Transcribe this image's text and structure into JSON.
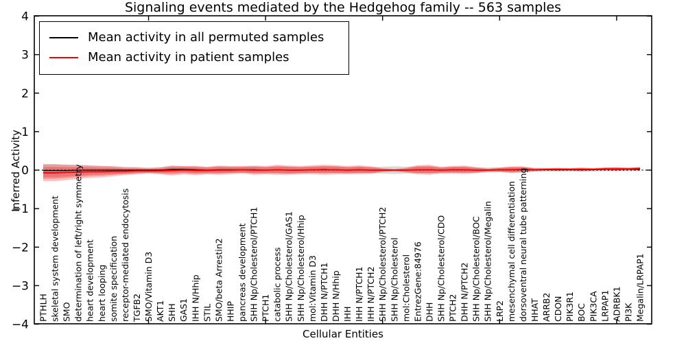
{
  "chart_data": {
    "type": "line",
    "title": "Signaling events mediated by the Hedgehog family -- 563 samples",
    "xlabel": "Cellular Entities",
    "ylabel": "Inferred Activity",
    "ylim": [
      -4,
      4
    ],
    "yticks": [
      4,
      3,
      2,
      1,
      0,
      -1,
      -2,
      -3,
      -4
    ],
    "ytick_labels": [
      "4",
      "3",
      "2",
      "1",
      "0",
      "−1",
      "−2",
      "−3",
      "−4"
    ],
    "x_major_tick_indices": [
      9,
      19,
      29,
      39,
      49
    ],
    "grid": false,
    "legend_position": "upper left",
    "zero_line_style": "dotted",
    "colors": {
      "permuted_line": "#000000",
      "patient_line": "#ff0000",
      "patient_band": "#ff0000",
      "permuted_band": "#999999",
      "frame": "#000000"
    },
    "categories": [
      "PTHLH",
      "skeletal system development",
      "SMO",
      "determination of left/right symmetry",
      "heart development",
      "heart looping",
      "somite specification",
      "receptor-mediated endocytosis",
      "TGFB2",
      "SMO/Vitamin D3",
      "AKT1",
      "SHH",
      "GAS1",
      "IHH N/Hhip",
      "STIL",
      "SMO/beta Arrestin2",
      "HHIP",
      "pancreas development",
      "SHH Np/Cholesterol/PTCH1",
      "PTCH1",
      "catabolic process",
      "SHH Np/Cholesterol/GAS1",
      "SHH Np/Cholesterol/Hhip",
      "mol:Vitamin D3",
      "DHH N/PTCH1",
      "DHH N/Hhip",
      "IHH",
      "IHH N/PTCH1",
      "IHH N/PTCH2",
      "SHH Np/Cholesterol/PTCH2",
      "SHH Np/Cholesterol",
      "mol:Cholesterol",
      "EntrezGene:84976",
      "DHH",
      "SHH Np/Cholesterol/CDO",
      "PTCH2",
      "DHH N/PTCH2",
      "SHH Np/Cholesterol/BOC",
      "SHH Np/Cholesterol/Megalin",
      "LRP2",
      "mesenchymal cell differentiation",
      "dorsoventral neural tube patterning",
      "HHAT",
      "ARRB2",
      "CDON",
      "PIK3R1",
      "BOC",
      "PIK3CA",
      "LRPAP1",
      "ADRBK1",
      "PI3K",
      "Megalin/LRPAP1"
    ],
    "series": [
      {
        "name": "Mean activity in all permuted samples",
        "color": "#000000",
        "values": [
          -0.01,
          -0.01,
          -0.01,
          0,
          0,
          0,
          0,
          0,
          0,
          0,
          0,
          0.02,
          0.02,
          0.01,
          0,
          0.01,
          0.01,
          0.01,
          0.01,
          0,
          0.01,
          0,
          0,
          0.01,
          0.02,
          0.01,
          0,
          0.01,
          0,
          0,
          0,
          0,
          0.01,
          0.01,
          0,
          0.01,
          0.01,
          0,
          0,
          0.01,
          0.01,
          0.01,
          0.01,
          0.01,
          0.01,
          0.01,
          0.01,
          0.01,
          0.02,
          0.02,
          0.02,
          0.02
        ],
        "std": [
          0.17,
          0.17,
          0.15,
          0.14,
          0.12,
          0.11,
          0.1,
          0.09,
          0.08,
          0.07,
          0.08,
          0.09,
          0.08,
          0.09,
          0.08,
          0.09,
          0.08,
          0.08,
          0.09,
          0.08,
          0.09,
          0.09,
          0.08,
          0.08,
          0.09,
          0.09,
          0.08,
          0.08,
          0.08,
          0.09,
          0.1,
          0.09,
          0.09,
          0.09,
          0.07,
          0.08,
          0.08,
          0.07,
          0.07,
          0.06,
          0.07,
          0.07,
          0.05,
          0.05,
          0.05,
          0.05,
          0.05,
          0.05,
          0.05,
          0.05,
          0.05,
          0.05
        ]
      },
      {
        "name": "Mean activity in patient samples",
        "color": "#ff0000",
        "values": [
          -0.07,
          -0.07,
          -0.06,
          -0.05,
          -0.04,
          -0.04,
          -0.03,
          -0.03,
          -0.02,
          -0.02,
          -0.02,
          -0.01,
          0,
          -0.01,
          -0.01,
          0,
          0,
          0.01,
          0,
          0,
          0.01,
          0,
          0,
          0.01,
          0.01,
          0.01,
          0,
          0.01,
          0,
          0,
          0,
          0,
          0.01,
          0.01,
          0,
          0.01,
          0.01,
          0,
          0,
          0.01,
          0.01,
          0.02,
          0.01,
          0.02,
          0.02,
          0.02,
          0.02,
          0.02,
          0.03,
          0.03,
          0.03,
          0.04
        ],
        "std": [
          0.22,
          0.22,
          0.2,
          0.18,
          0.16,
          0.15,
          0.13,
          0.1,
          0.09,
          0.07,
          0.09,
          0.13,
          0.11,
          0.12,
          0.1,
          0.12,
          0.11,
          0.1,
          0.12,
          0.11,
          0.13,
          0.12,
          0.11,
          0.12,
          0.13,
          0.12,
          0.11,
          0.12,
          0.1,
          0.05,
          0.03,
          0.06,
          0.12,
          0.13,
          0.09,
          0.1,
          0.11,
          0.08,
          0.04,
          0.06,
          0.09,
          0.08,
          0.04,
          0.03,
          0.04,
          0.03,
          0.05,
          0.03,
          0.04,
          0.05,
          0.03,
          0.05
        ]
      }
    ]
  },
  "legend": {
    "items": [
      {
        "label": "Mean activity in all permuted samples"
      },
      {
        "label": "Mean activity in patient samples"
      }
    ]
  }
}
